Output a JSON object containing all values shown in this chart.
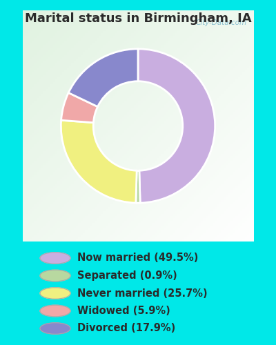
{
  "title": "Marital status in Birmingham, IA",
  "title_fontsize": 13,
  "title_fontweight": "bold",
  "title_color": "#2a2a2a",
  "slices": [
    49.5,
    0.9,
    25.7,
    5.9,
    17.9
  ],
  "labels": [
    "Now married (49.5%)",
    "Separated (0.9%)",
    "Never married (25.7%)",
    "Widowed (5.9%)",
    "Divorced (17.9%)"
  ],
  "colors": [
    "#c9aee0",
    "#b8d8a0",
    "#f0f080",
    "#f0a8a8",
    "#8888cc"
  ],
  "bg_outer": "#00e8e8",
  "bg_chart_color1": "#e8f5e8",
  "bg_chart_color2": "#ffffff",
  "watermark": "City-Data.com",
  "donut_width": 0.42,
  "start_angle": 90,
  "legend_fontsize": 10.5,
  "legend_text_color": "#2a2a2a"
}
